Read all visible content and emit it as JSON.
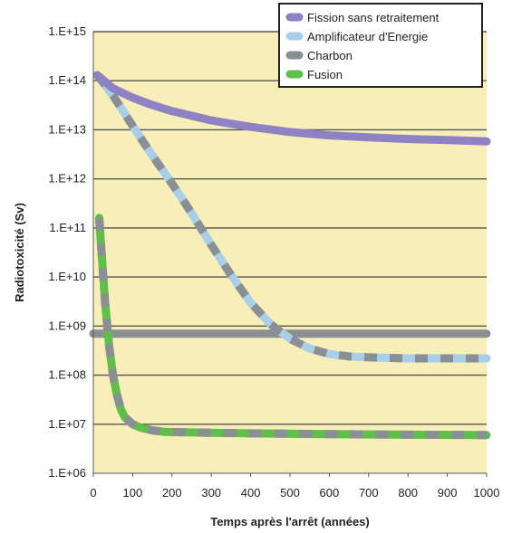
{
  "chart_data": {
    "type": "line",
    "title": "",
    "xlabel": "Temps après l'arrêt (années)",
    "ylabel": "Radiotoxicité (Sv)",
    "xlim": [
      0,
      1000
    ],
    "ylim": [
      1000000.0,
      1000000000000000.0
    ],
    "yscale": "log",
    "x_ticks": [
      0,
      100,
      200,
      300,
      400,
      500,
      600,
      700,
      800,
      900,
      1000
    ],
    "x_tick_labels": [
      "0",
      "100",
      "200",
      "300",
      "400",
      "500",
      "600",
      "700",
      "800",
      "900",
      "1000"
    ],
    "y_ticks": [
      1000000.0,
      10000000.0,
      100000000.0,
      1000000000.0,
      10000000000.0,
      100000000000.0,
      1000000000000.0,
      10000000000000.0,
      100000000000000.0,
      1000000000000000.0
    ],
    "y_tick_labels": [
      "1.E+06",
      "1.E+07",
      "1.E+08",
      "1.E+09",
      "1.E+10",
      "1.E+11",
      "1.E+12",
      "1.E+13",
      "1.E+14",
      "1.E+15"
    ],
    "grid": "horizontal",
    "legend_position": "top-right",
    "plot_background": "#f8eeb8",
    "series": [
      {
        "name": "Fission sans retraitement",
        "color": "#8f82c4",
        "x": [
          10,
          50,
          100,
          150,
          200,
          300,
          400,
          500,
          600,
          700,
          800,
          900,
          1000
        ],
        "y": [
          130000000000000.0,
          70000000000000.0,
          45000000000000.0,
          32000000000000.0,
          24000000000000.0,
          15500000000000.0,
          11500000000000.0,
          9000000000000.0,
          7700000000000.0,
          7000000000000.0,
          6500000000000.0,
          6200000000000.0,
          5800000000000.0
        ]
      },
      {
        "name": "Amplificateur d'Energie",
        "color": "#a9cfe8",
        "dash_color": "#8a8f96",
        "x": [
          10,
          50,
          100,
          150,
          200,
          250,
          300,
          350,
          400,
          450,
          500,
          550,
          600,
          650,
          700,
          800,
          900,
          1000
        ],
        "y": [
          130000000000000.0,
          50000000000000.0,
          12000000000000.0,
          3000000000000.0,
          800000000000.0,
          200000000000.0,
          45000000000.0,
          11000000000.0,
          3000000000.0,
          1100000000.0,
          550000000.0,
          350000000.0,
          270000000.0,
          240000000.0,
          230000000.0,
          220000000.0,
          220000000.0,
          220000000.0
        ]
      },
      {
        "name": "Charbon",
        "color": "#8a8f96",
        "x": [
          0,
          1000
        ],
        "y": [
          700000000.0,
          700000000.0
        ]
      },
      {
        "name": "Fusion",
        "color": "#5fbf4a",
        "dash_color": "#8a8f96",
        "x": [
          15,
          20,
          30,
          40,
          50,
          60,
          70,
          80,
          100,
          120,
          150,
          180,
          250,
          400,
          600,
          800,
          1000
        ],
        "y": [
          160000000000.0,
          40000000000.0,
          3000000000.0,
          400000000.0,
          100000000.0,
          40000000.0,
          20000000.0,
          14000000.0,
          10000000.0,
          8500000.0,
          7500000.0,
          7000000.0,
          6800000.0,
          6500000.0,
          6300000.0,
          6100000.0,
          6000000.0
        ]
      }
    ]
  }
}
